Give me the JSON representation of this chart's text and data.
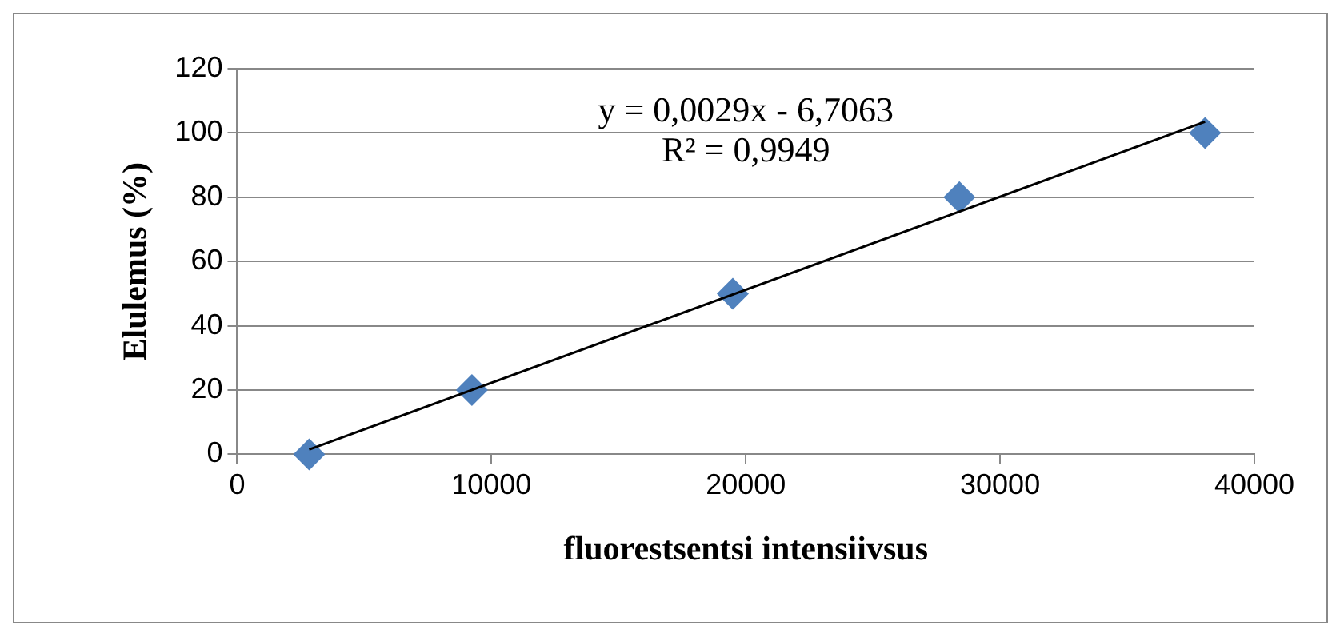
{
  "chart_data": {
    "type": "scatter",
    "xlabel": "fluorestsentsi intensiivsus",
    "ylabel": "Elulemus (%)",
    "annotations": [
      "y = 0,0029x - 6,7063",
      "R² = 0,9949"
    ],
    "xlim": [
      0,
      40000
    ],
    "xticks": [
      0,
      10000,
      20000,
      30000,
      40000
    ],
    "ylim": [
      0,
      120
    ],
    "yticks": [
      0,
      20,
      40,
      60,
      80,
      100,
      120
    ],
    "grid": "y",
    "legend": false,
    "marker": "diamond",
    "series": [
      {
        "type": "scatter",
        "color": "#4f81bd",
        "x": [
          2830,
          9230,
          19490,
          28400,
          38060
        ],
        "values": [
          0,
          20,
          50,
          80,
          100
        ]
      },
      {
        "type": "line",
        "color": "#000000",
        "marker": "none",
        "x": [
          2830,
          38060
        ],
        "values": [
          1.5,
          103.5
        ]
      }
    ]
  }
}
